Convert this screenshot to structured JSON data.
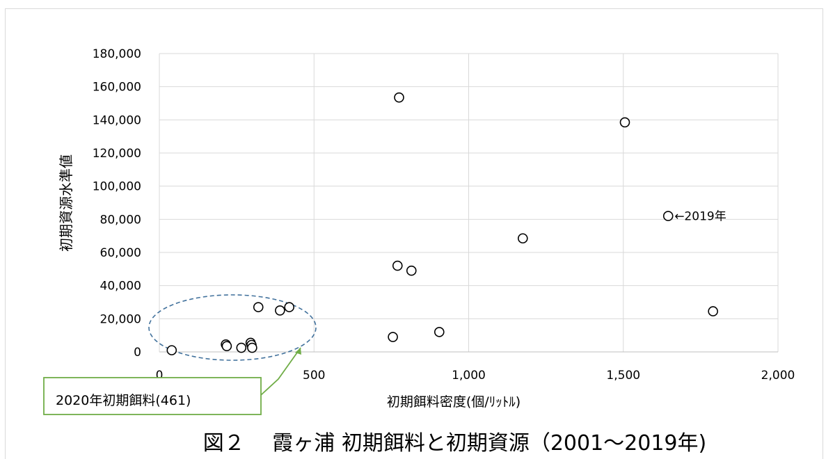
{
  "chart_data": {
    "type": "scatter",
    "title": "図２　 霞ヶ浦  初期餌料と初期資源（2001〜2019年)",
    "xlabel": "初期餌料密度(個/ﾘｯﾄﾙ)",
    "ylabel": "初期資源水準値",
    "xlim": [
      0,
      2000
    ],
    "ylim": [
      0,
      180000
    ],
    "x_ticks": [
      "0",
      "500",
      "1,000",
      "1,500",
      "2,000"
    ],
    "y_ticks": [
      "0",
      "20,000",
      "40,000",
      "60,000",
      "80,000",
      "100,000",
      "120,000",
      "140,000",
      "160,000",
      "180,000"
    ],
    "grid": "vertical-and-horizontal",
    "points": [
      {
        "x": 40,
        "y": 1000
      },
      {
        "x": 215,
        "y": 4500
      },
      {
        "x": 218,
        "y": 3500
      },
      {
        "x": 265,
        "y": 2500
      },
      {
        "x": 295,
        "y": 5500
      },
      {
        "x": 298,
        "y": 4200
      },
      {
        "x": 300,
        "y": 2500
      },
      {
        "x": 320,
        "y": 27000
      },
      {
        "x": 390,
        "y": 25000
      },
      {
        "x": 420,
        "y": 27000
      },
      {
        "x": 755,
        "y": 9000
      },
      {
        "x": 770,
        "y": 52000
      },
      {
        "x": 775,
        "y": 153500
      },
      {
        "x": 815,
        "y": 49000
      },
      {
        "x": 905,
        "y": 12000
      },
      {
        "x": 1175,
        "y": 68500
      },
      {
        "x": 1505,
        "y": 138500
      },
      {
        "x": 1645,
        "y": 82000
      },
      {
        "x": 1790,
        "y": 24500
      }
    ],
    "annotations": [
      {
        "text": "←2019年",
        "x": 1645,
        "y": 82000
      },
      {
        "text": "2020年初期餌料(461)",
        "points_to_x": 461
      }
    ]
  }
}
